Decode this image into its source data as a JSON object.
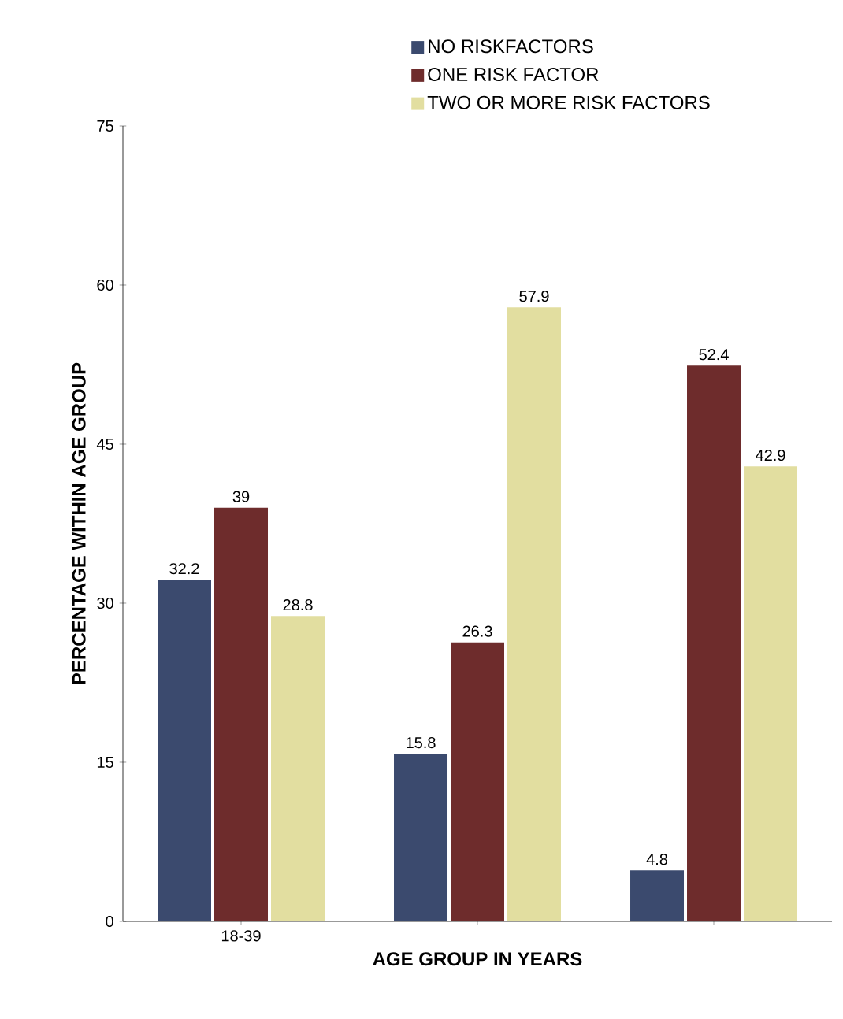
{
  "chart_data": {
    "type": "bar",
    "xlabel": "AGE GROUP IN YEARS",
    "ylabel": "PERCENTAGE WITHIN AGE GROUP",
    "categories": [
      "18-39",
      null,
      null
    ],
    "series": [
      {
        "name": "NO RISKFACTORS",
        "color": "#3b4a6e",
        "values": [
          32.2,
          15.8,
          4.8
        ],
        "value_labels": [
          "32.2",
          "15.8",
          "4.8"
        ]
      },
      {
        "name": "ONE RISK FACTOR",
        "color": "#6e2c2c",
        "values": [
          39,
          26.3,
          52.4
        ],
        "value_labels": [
          "39",
          "26.3",
          "52.4"
        ]
      },
      {
        "name": "TWO OR MORE RISK FACTORS",
        "color": "#e2dea0",
        "values": [
          28.8,
          57.9,
          42.9
        ],
        "value_labels": [
          "28.8",
          "57.9",
          "42.9"
        ]
      }
    ],
    "ylim": [
      0,
      75
    ],
    "yticks": [
      0,
      15,
      30,
      45,
      60,
      75
    ],
    "legend": "top"
  }
}
